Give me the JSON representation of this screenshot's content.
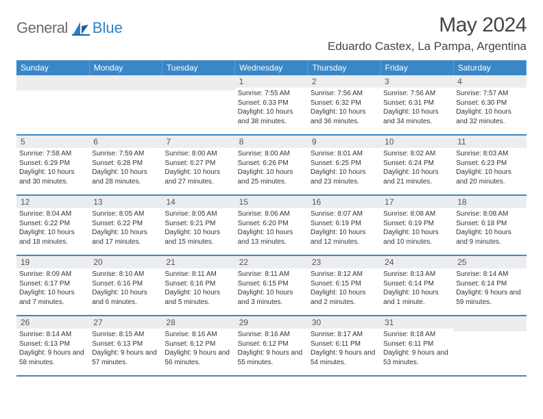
{
  "brand": {
    "word1": "General",
    "word2": "Blue"
  },
  "header": {
    "monthTitle": "May 2024",
    "location": "Eduardo Castex, La Pampa, Argentina"
  },
  "colors": {
    "headerBar": "#3a87c7",
    "dayStrip": "#ecedef",
    "rowBorder": "#3a87c7",
    "brandBlue": "#2f7fc2",
    "brandGray": "#6b6b6b"
  },
  "weekdays": [
    "Sunday",
    "Monday",
    "Tuesday",
    "Wednesday",
    "Thursday",
    "Friday",
    "Saturday"
  ],
  "weeks": [
    [
      {
        "empty": true
      },
      {
        "empty": true
      },
      {
        "empty": true
      },
      {
        "n": "1",
        "sunrise": "7:55 AM",
        "sunset": "6:33 PM",
        "daylight": "10 hours and 38 minutes."
      },
      {
        "n": "2",
        "sunrise": "7:56 AM",
        "sunset": "6:32 PM",
        "daylight": "10 hours and 36 minutes."
      },
      {
        "n": "3",
        "sunrise": "7:56 AM",
        "sunset": "6:31 PM",
        "daylight": "10 hours and 34 minutes."
      },
      {
        "n": "4",
        "sunrise": "7:57 AM",
        "sunset": "6:30 PM",
        "daylight": "10 hours and 32 minutes."
      }
    ],
    [
      {
        "n": "5",
        "sunrise": "7:58 AM",
        "sunset": "6:29 PM",
        "daylight": "10 hours and 30 minutes."
      },
      {
        "n": "6",
        "sunrise": "7:59 AM",
        "sunset": "6:28 PM",
        "daylight": "10 hours and 28 minutes."
      },
      {
        "n": "7",
        "sunrise": "8:00 AM",
        "sunset": "6:27 PM",
        "daylight": "10 hours and 27 minutes."
      },
      {
        "n": "8",
        "sunrise": "8:00 AM",
        "sunset": "6:26 PM",
        "daylight": "10 hours and 25 minutes."
      },
      {
        "n": "9",
        "sunrise": "8:01 AM",
        "sunset": "6:25 PM",
        "daylight": "10 hours and 23 minutes."
      },
      {
        "n": "10",
        "sunrise": "8:02 AM",
        "sunset": "6:24 PM",
        "daylight": "10 hours and 21 minutes."
      },
      {
        "n": "11",
        "sunrise": "8:03 AM",
        "sunset": "6:23 PM",
        "daylight": "10 hours and 20 minutes."
      }
    ],
    [
      {
        "n": "12",
        "sunrise": "8:04 AM",
        "sunset": "6:22 PM",
        "daylight": "10 hours and 18 minutes."
      },
      {
        "n": "13",
        "sunrise": "8:05 AM",
        "sunset": "6:22 PM",
        "daylight": "10 hours and 17 minutes."
      },
      {
        "n": "14",
        "sunrise": "8:05 AM",
        "sunset": "6:21 PM",
        "daylight": "10 hours and 15 minutes."
      },
      {
        "n": "15",
        "sunrise": "8:06 AM",
        "sunset": "6:20 PM",
        "daylight": "10 hours and 13 minutes."
      },
      {
        "n": "16",
        "sunrise": "8:07 AM",
        "sunset": "6:19 PM",
        "daylight": "10 hours and 12 minutes."
      },
      {
        "n": "17",
        "sunrise": "8:08 AM",
        "sunset": "6:19 PM",
        "daylight": "10 hours and 10 minutes."
      },
      {
        "n": "18",
        "sunrise": "8:08 AM",
        "sunset": "6:18 PM",
        "daylight": "10 hours and 9 minutes."
      }
    ],
    [
      {
        "n": "19",
        "sunrise": "8:09 AM",
        "sunset": "6:17 PM",
        "daylight": "10 hours and 7 minutes."
      },
      {
        "n": "20",
        "sunrise": "8:10 AM",
        "sunset": "6:16 PM",
        "daylight": "10 hours and 6 minutes."
      },
      {
        "n": "21",
        "sunrise": "8:11 AM",
        "sunset": "6:16 PM",
        "daylight": "10 hours and 5 minutes."
      },
      {
        "n": "22",
        "sunrise": "8:11 AM",
        "sunset": "6:15 PM",
        "daylight": "10 hours and 3 minutes."
      },
      {
        "n": "23",
        "sunrise": "8:12 AM",
        "sunset": "6:15 PM",
        "daylight": "10 hours and 2 minutes."
      },
      {
        "n": "24",
        "sunrise": "8:13 AM",
        "sunset": "6:14 PM",
        "daylight": "10 hours and 1 minute."
      },
      {
        "n": "25",
        "sunrise": "8:14 AM",
        "sunset": "6:14 PM",
        "daylight": "9 hours and 59 minutes."
      }
    ],
    [
      {
        "n": "26",
        "sunrise": "8:14 AM",
        "sunset": "6:13 PM",
        "daylight": "9 hours and 58 minutes."
      },
      {
        "n": "27",
        "sunrise": "8:15 AM",
        "sunset": "6:13 PM",
        "daylight": "9 hours and 57 minutes."
      },
      {
        "n": "28",
        "sunrise": "8:16 AM",
        "sunset": "6:12 PM",
        "daylight": "9 hours and 56 minutes."
      },
      {
        "n": "29",
        "sunrise": "8:16 AM",
        "sunset": "6:12 PM",
        "daylight": "9 hours and 55 minutes."
      },
      {
        "n": "30",
        "sunrise": "8:17 AM",
        "sunset": "6:11 PM",
        "daylight": "9 hours and 54 minutes."
      },
      {
        "n": "31",
        "sunrise": "8:18 AM",
        "sunset": "6:11 PM",
        "daylight": "9 hours and 53 minutes."
      },
      {
        "empty": true
      }
    ]
  ],
  "labels": {
    "sunrise": "Sunrise:",
    "sunset": "Sunset:",
    "daylight": "Daylight:"
  }
}
